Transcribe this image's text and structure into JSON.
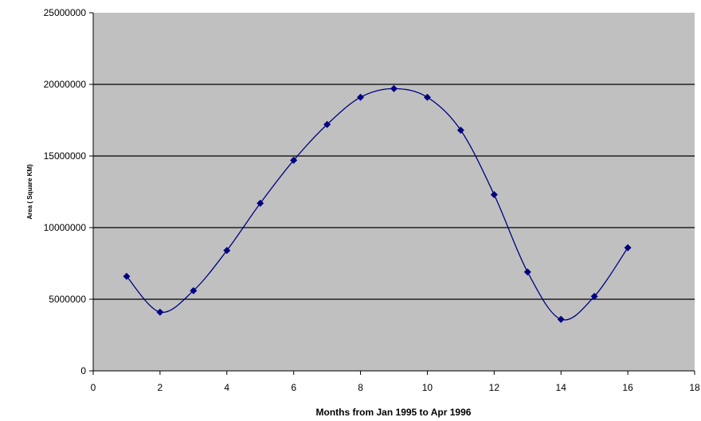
{
  "chart_data": {
    "type": "scatter",
    "title": "",
    "xlabel": "Months from Jan 1995 to Apr 1996",
    "ylabel": "Area ( Square KM)",
    "xlim": [
      0,
      18
    ],
    "ylim": [
      0,
      25000000
    ],
    "x_ticks": [
      "0",
      "2",
      "4",
      "6",
      "8",
      "10",
      "12",
      "14",
      "16",
      "18"
    ],
    "y_ticks": [
      "0",
      "5000000",
      "10000000",
      "15000000",
      "20000000",
      "25000000"
    ],
    "grid": "horizontal",
    "smooth_line": true,
    "legend": "none",
    "series": [
      {
        "x": [
          1,
          2,
          3,
          4,
          5,
          6,
          7,
          8,
          9,
          10,
          11,
          12,
          13,
          14,
          15,
          16
        ],
        "values": [
          6600000,
          4100000,
          5600000,
          8400000,
          11700000,
          14700000,
          17200000,
          19100000,
          19700000,
          19100000,
          16800000,
          12300000,
          6900000,
          3600000,
          5200000,
          8600000
        ]
      }
    ],
    "colors": {
      "series": "#000080",
      "plot_background": "#c0c0c0",
      "gridline": "#000000"
    }
  }
}
